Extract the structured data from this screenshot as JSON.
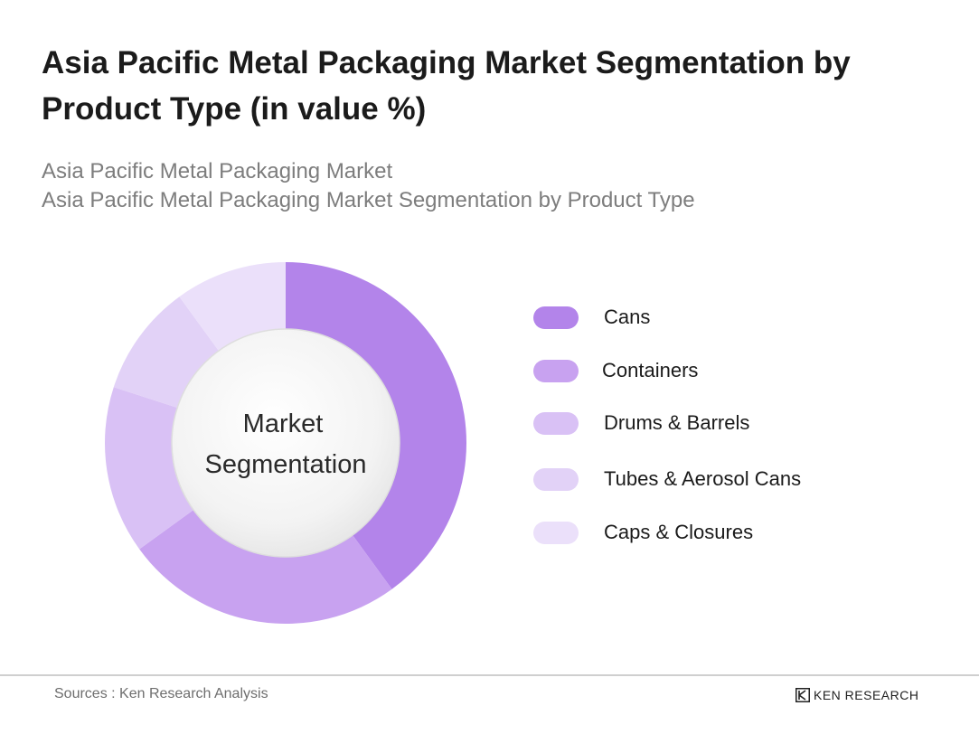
{
  "header": {
    "title": "Asia Pacific Metal Packaging Market Segmentation by Product Type (in value %)",
    "subtitle_line1": "Asia Pacific Metal Packaging Market",
    "subtitle_line2": "Asia Pacific Metal Packaging Market Segmentation by Product Type"
  },
  "chart_data": {
    "type": "pie",
    "title": "Asia Pacific Metal Packaging Market Segmentation by Product Type (in value %)",
    "center_label": [
      "Market",
      "Segmentation"
    ],
    "categories": [
      "Cans",
      "Containers",
      "Drums & Barrels",
      "Tubes & Aerosol Cans",
      "Caps & Closures"
    ],
    "values": [
      40,
      25,
      15,
      10,
      10
    ],
    "colors": [
      "#b384ea",
      "#c8a2f0",
      "#d9c1f5",
      "#e2d2f7",
      "#ebe0fa"
    ],
    "legend_position": "right"
  },
  "footer": {
    "source": "Sources : Ken Research Analysis",
    "brand": "KEN RESEARCH"
  }
}
